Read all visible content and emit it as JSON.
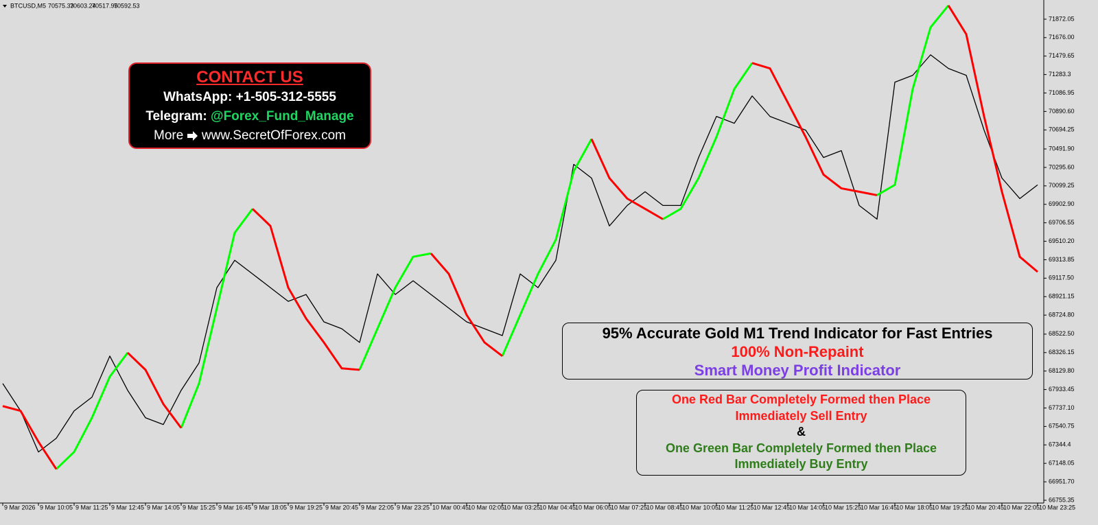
{
  "chart_data": {
    "type": "line",
    "title": "BTCUSD,M5",
    "ohlc": [
      70575.33,
      70603.24,
      70517.95,
      70592.53
    ],
    "xticks": [
      "9 Mar 2026",
      "9 Mar 10:05",
      "9 Mar 11:25",
      "9 Mar 12:45",
      "9 Mar 14:05",
      "9 Mar 15:25",
      "9 Mar 16:45",
      "9 Mar 18:05",
      "9 Mar 19:25",
      "9 Mar 20:45",
      "9 Mar 22:05",
      "9 Mar 23:25",
      "10 Mar 00:45",
      "10 Mar 02:05",
      "10 Mar 03:25",
      "10 Mar 04:45",
      "10 Mar 06:05",
      "10 Mar 07:25",
      "10 Mar 08:45",
      "10 Mar 10:05",
      "10 Mar 11:25",
      "10 Mar 12:45",
      "10 Mar 14:05",
      "10 Mar 15:25",
      "10 Mar 16:45",
      "10 Mar 18:05",
      "10 Mar 19:25",
      "10 Mar 20:45",
      "10 Mar 22:05",
      "10 Mar 23:25"
    ],
    "ylim": [
      66726,
      72076
    ],
    "yticks": [
      71872.05,
      {
        "value": 71676,
        "label": "71676.00"
      },
      71479.65,
      71283.3,
      71086.95,
      {
        "value": 70890.6,
        "label": "70890.60"
      },
      70694.25,
      {
        "value": 70491.9,
        "label": "70491.90"
      },
      {
        "value": 70295.6,
        "label": "70295.60"
      },
      70099.25,
      {
        "value": 69902.9,
        "label": "69902.90"
      },
      69706.55,
      {
        "value": 69510.2,
        "label": "69510.20"
      },
      69313.85,
      {
        "value": 69117.5,
        "label": "69117.50"
      },
      68921.15,
      {
        "value": 68724.8,
        "label": "68724.80"
      },
      {
        "value": 68522.5,
        "label": "68522.50"
      },
      68326.15,
      {
        "value": 68129.8,
        "label": "68129.80"
      },
      67933.45,
      {
        "value": 67737.1,
        "label": "67737.10"
      },
      67540.75,
      67344.4,
      67148.05,
      {
        "value": 66951.7,
        "label": "66951.70"
      },
      66755.35
    ],
    "series": [
      {
        "color": "#000000",
        "values": [
          67997,
          67706,
          67269,
          67415,
          67706,
          67852,
          68289,
          67925,
          67633,
          67561,
          67925,
          68216,
          69017,
          69308,
          69163,
          69017,
          68871,
          68944,
          68653,
          68580,
          68434,
          69163,
          68944,
          69090,
          68944,
          68799,
          68653,
          68580,
          68507,
          69163,
          69017,
          69308,
          70328,
          70182,
          69673,
          69891,
          70037,
          69891,
          69891,
          70401,
          70838,
          70765,
          71056,
          70838,
          70765,
          70692,
          70401,
          70474,
          69891,
          69745,
          71202,
          71275,
          71493,
          71348,
          71275,
          70692,
          70182,
          69964,
          70110
        ]
      },
      {
        "color": "#00ff00",
        "values": [
          null,
          null,
          null,
          67087,
          67269,
          67633,
          68070,
          68325,
          null,
          null,
          67524,
          67997,
          68799,
          69600,
          69855,
          null,
          null,
          null,
          null,
          null,
          68143,
          68580,
          69017,
          69345,
          69381,
          null,
          null,
          null,
          68289,
          68726,
          69163,
          69527,
          70255,
          70598,
          null,
          null,
          null,
          69745,
          69855,
          70182,
          70619,
          71129,
          71406,
          null,
          null,
          null,
          null,
          null,
          null,
          70000,
          70110,
          71129,
          71785,
          72018,
          null,
          null,
          null,
          null,
          null
        ]
      },
      {
        "color": "#ff0000",
        "values": [
          67757,
          67706,
          67378,
          67087,
          null,
          null,
          null,
          68325,
          68143,
          67779,
          67524,
          null,
          null,
          null,
          69855,
          69673,
          69017,
          68689,
          68434,
          68158,
          68143,
          null,
          null,
          null,
          69381,
          69163,
          68726,
          68434,
          68289,
          null,
          null,
          null,
          null,
          70598,
          70182,
          69964,
          69855,
          69745,
          null,
          null,
          null,
          null,
          71406,
          71348,
          70984,
          70619,
          70219,
          70073,
          70037,
          70000,
          null,
          null,
          null,
          72018,
          71712,
          70838,
          70037,
          69345,
          69185
        ]
      }
    ]
  },
  "contact": {
    "title": "CONTACT US",
    "whatsapp": "WhatsApp: +1-505-312-5555",
    "telegram_label": "Telegram:",
    "telegram_handle": "@Forex_Fund_Manage",
    "more": "More",
    "website": "www.SecretOfForex.com"
  },
  "promo": {
    "headline": "95% Accurate Gold M1 Trend Indicator for Fast Entries",
    "non_repaint": "100% Non-Repaint",
    "product": "Smart Money Profit Indicator"
  },
  "rules": {
    "sell_1": "One Red Bar Completely Formed then Place",
    "sell_2": "Immediately Sell Entry",
    "and": "&",
    "buy_1": "One Green Bar Completely Formed then Place",
    "buy_2": "Immediately Buy Entry"
  }
}
